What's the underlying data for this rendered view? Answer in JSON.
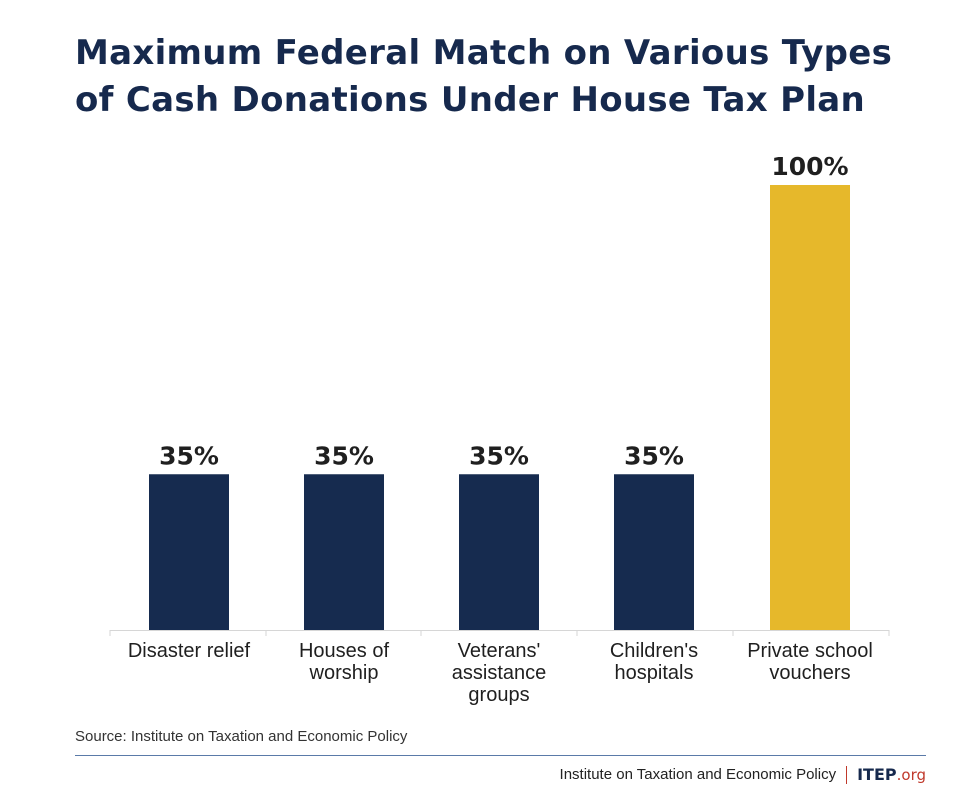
{
  "title": "Maximum Federal Match on Various Types of Cash Donations Under House Tax Plan",
  "source": "Source: Institute on Taxation and Economic Policy",
  "footer": {
    "org_name": "Institute on Taxation and Economic Policy",
    "logo_main": "ITEP",
    "logo_suffix": ".org"
  },
  "colors": {
    "standard_bar": "#162b4f",
    "highlight_bar": "#e6b82b",
    "title": "#16294d",
    "accent": "#c0392b"
  },
  "chart_data": {
    "type": "bar",
    "categories": [
      [
        "Disaster relief"
      ],
      [
        "Houses of",
        "worship"
      ],
      [
        "Veterans'",
        "assistance",
        "groups"
      ],
      [
        "Children's",
        "hospitals"
      ],
      [
        "Private school",
        "vouchers"
      ]
    ],
    "values": [
      35,
      35,
      35,
      35,
      100
    ],
    "value_labels": [
      "35%",
      "35%",
      "35%",
      "35%",
      "100%"
    ],
    "highlight_index": 4,
    "unit": "%",
    "ylim": [
      0,
      100
    ],
    "grid": false,
    "legend": "none"
  }
}
